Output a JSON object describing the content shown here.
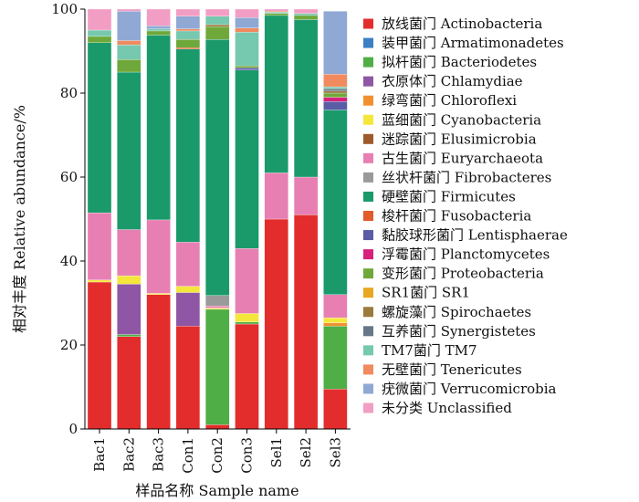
{
  "chart_data": {
    "type": "bar",
    "stacked": true,
    "categories": [
      "Bac1",
      "Bac2",
      "Bac3",
      "Con1",
      "Con2",
      "Con3",
      "Sel1",
      "Sel2",
      "Sel3"
    ],
    "xlabel": "样品名称  Sample name",
    "ylabel": "相对丰度 Relative abundance/%",
    "ylim": [
      0,
      100
    ],
    "yticks": [
      0,
      20,
      40,
      60,
      80,
      100
    ],
    "legend_position": "right",
    "series": [
      {
        "name": "放线菌门  Actinobacteria",
        "color": "#e32d2d",
        "values": [
          35,
          22,
          32,
          24.5,
          1,
          25,
          50,
          51,
          9.5
        ]
      },
      {
        "name": "装甲菌门  Armatimonadetes",
        "color": "#3b7fc4",
        "values": [
          0,
          0,
          0,
          0,
          0,
          0,
          0,
          0,
          0
        ]
      },
      {
        "name": "拟杆菌门  Bacteriodetes",
        "color": "#4fae45",
        "values": [
          0,
          0.5,
          0,
          0,
          27.5,
          0.5,
          0,
          0,
          15
        ]
      },
      {
        "name": "衣原体门  Chlamydiae",
        "color": "#8e56a4",
        "values": [
          0,
          12,
          0,
          8,
          0,
          0,
          0,
          0,
          0
        ]
      },
      {
        "name": "绿弯菌门 Chloroflexi",
        "color": "#f29031",
        "values": [
          0,
          0,
          0,
          0,
          0,
          0,
          0,
          0,
          0.8
        ]
      },
      {
        "name": "蓝细菌门  Cyanobacteria",
        "color": "#f5e63c",
        "values": [
          0.5,
          2,
          0.3,
          1.5,
          0.3,
          2,
          0,
          0,
          1.2
        ]
      },
      {
        "name": "迷踪菌门  Elusimicrobia",
        "color": "#9e5a2c",
        "values": [
          0,
          0,
          0,
          0,
          0,
          0,
          0,
          0,
          0
        ]
      },
      {
        "name": "古生菌门  Euryarchaeota",
        "color": "#e77fb3",
        "values": [
          16,
          11,
          17.5,
          10.5,
          0.5,
          15.5,
          11,
          9,
          5.5
        ]
      },
      {
        "name": "丝状杆菌门  Fibrobacteres",
        "color": "#9a9a9a",
        "values": [
          0,
          0,
          0,
          0,
          2.5,
          0,
          0,
          0,
          0
        ]
      },
      {
        "name": "硬壁菌门  Firmicutes",
        "color": "#1a9a6b",
        "values": [
          40.5,
          37.5,
          44,
          46,
          61,
          42.5,
          37.5,
          37.5,
          44
        ]
      },
      {
        "name": "梭杆菌门 Fusobacteria",
        "color": "#e25b2a",
        "values": [
          0,
          0,
          0,
          0.3,
          0,
          0,
          0,
          0,
          0
        ]
      },
      {
        "name": "黏胶球形菌门 Lentisphaerae",
        "color": "#5b5ca6",
        "values": [
          0,
          0,
          0,
          0,
          0,
          0.5,
          0,
          0,
          2
        ]
      },
      {
        "name": "浮霉菌门  Planctomycetes",
        "color": "#d6207c",
        "values": [
          0,
          0,
          0,
          0,
          0,
          0,
          0,
          0,
          1
        ]
      },
      {
        "name": "变形菌门  Proteobacteria",
        "color": "#6fa83a",
        "values": [
          1.5,
          3,
          1,
          2,
          3,
          0.5,
          0.5,
          1,
          1
        ]
      },
      {
        "name": "SR1菌门  SR1",
        "color": "#e8a721",
        "values": [
          0,
          0,
          0,
          0,
          0,
          0,
          0,
          0,
          0
        ]
      },
      {
        "name": "螺旋藻门  Spirochaetes",
        "color": "#9c7a3c",
        "values": [
          0,
          0,
          0,
          0,
          0.5,
          0,
          0,
          0,
          0.5
        ]
      },
      {
        "name": "互养菌门  Synergistetes",
        "color": "#667788",
        "values": [
          0,
          0,
          0,
          0,
          0,
          0,
          0,
          0,
          0.5
        ]
      },
      {
        "name": "TM7菌门  TM7",
        "color": "#76c8ae",
        "values": [
          1.5,
          3.5,
          0.5,
          2,
          2,
          8,
          0.3,
          0.5,
          0.5
        ]
      },
      {
        "name": "无壁菌门  Tenericutes",
        "color": "#f18a5f",
        "values": [
          0,
          1,
          0,
          0.5,
          0,
          1,
          0.2,
          0,
          3
        ]
      },
      {
        "name": "疣微菌门  Verrucomicrobia",
        "color": "#8fa9d4",
        "values": [
          0,
          7,
          0.7,
          3,
          0,
          2.5,
          0,
          0,
          15
        ]
      },
      {
        "name": "未分类  Unclassified",
        "color": "#f29ec4",
        "values": [
          5,
          0.5,
          4,
          1.7,
          1.7,
          2,
          0.5,
          1,
          0
        ]
      }
    ]
  }
}
